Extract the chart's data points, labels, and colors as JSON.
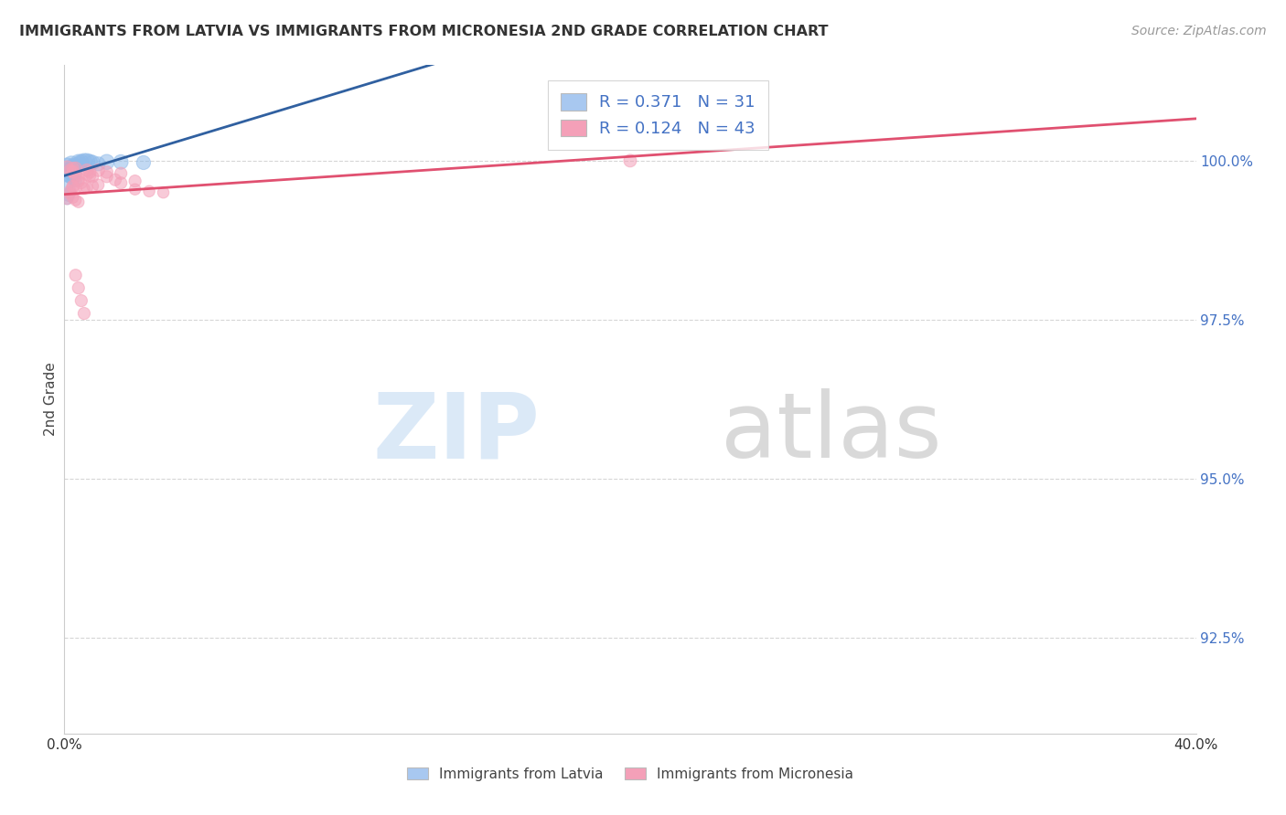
{
  "title": "IMMIGRANTS FROM LATVIA VS IMMIGRANTS FROM MICRONESIA 2ND GRADE CORRELATION CHART",
  "source": "Source: ZipAtlas.com",
  "ylabel": "2nd Grade",
  "ytick_vals": [
    92.5,
    95.0,
    97.5,
    100.0
  ],
  "ytick_labels": [
    "92.5%",
    "95.0%",
    "97.5%",
    "100.0%"
  ],
  "xlim": [
    0.0,
    40.0
  ],
  "ylim": [
    91.0,
    101.5
  ],
  "r_latvia": 0.371,
  "n_latvia": 31,
  "r_micronesia": 0.124,
  "n_micronesia": 43,
  "legend_color_latvia": "#A8C8F0",
  "legend_color_micronesia": "#F4A0B8",
  "trend_color_latvia": "#3060A0",
  "trend_color_micronesia": "#E05070",
  "dot_color_latvia": "#90BBEA",
  "dot_color_micronesia": "#F4A0B8",
  "background_color": "#FFFFFF",
  "latvia_x": [
    0.1,
    0.15,
    0.2,
    0.2,
    0.25,
    0.25,
    0.3,
    0.3,
    0.35,
    0.4,
    0.4,
    0.45,
    0.5,
    0.5,
    0.6,
    0.7,
    0.8,
    0.9,
    1.0,
    1.2,
    1.5,
    0.1,
    0.15,
    0.1,
    0.2,
    0.1,
    0.15,
    0.3,
    0.4,
    2.0,
    2.8
  ],
  "latvia_y": [
    99.9,
    99.85,
    99.8,
    99.75,
    99.9,
    99.95,
    99.92,
    99.88,
    99.85,
    99.82,
    99.88,
    99.92,
    99.95,
    99.98,
    99.98,
    99.99,
    99.99,
    99.98,
    99.97,
    99.95,
    99.98,
    99.78,
    99.75,
    99.6,
    99.5,
    99.4,
    99.45,
    99.7,
    99.68,
    99.98,
    99.97
  ],
  "micronesia_x": [
    0.1,
    0.2,
    0.3,
    0.3,
    0.4,
    0.4,
    0.5,
    0.5,
    0.6,
    0.7,
    0.8,
    0.9,
    0.8,
    0.9,
    1.0,
    1.2,
    1.5,
    1.8,
    2.0,
    2.5,
    3.0,
    3.5,
    0.2,
    0.3,
    0.1,
    0.4,
    0.5,
    0.3,
    0.4,
    0.2,
    0.3,
    0.4,
    0.5,
    0.6,
    0.7,
    2.5,
    1.2,
    1.0,
    0.8,
    1.5,
    2.0,
    0.3,
    20.0
  ],
  "micronesia_y": [
    99.9,
    99.85,
    99.83,
    99.82,
    99.88,
    99.75,
    99.72,
    99.68,
    99.65,
    99.56,
    99.85,
    99.82,
    99.78,
    99.76,
    99.75,
    99.85,
    99.82,
    99.7,
    99.65,
    99.55,
    99.52,
    99.5,
    99.48,
    99.42,
    99.4,
    99.38,
    99.35,
    99.58,
    99.55,
    99.52,
    99.6,
    98.2,
    98.0,
    97.8,
    97.6,
    99.68,
    99.62,
    99.6,
    99.58,
    99.75,
    99.8,
    99.88,
    100.0
  ],
  "latvia_sizes": [
    200,
    120,
    100,
    100,
    120,
    150,
    130,
    110,
    100,
    100,
    110,
    120,
    130,
    140,
    140,
    150,
    150,
    140,
    130,
    120,
    140,
    90,
    90,
    80,
    80,
    80,
    80,
    90,
    90,
    130,
    120
  ],
  "micronesia_sizes": [
    100,
    90,
    90,
    90,
    100,
    90,
    90,
    90,
    85,
    80,
    100,
    95,
    90,
    90,
    90,
    100,
    95,
    90,
    90,
    80,
    80,
    80,
    80,
    80,
    80,
    80,
    80,
    90,
    90,
    90,
    90,
    90,
    90,
    90,
    90,
    90,
    85,
    85,
    85,
    90,
    90,
    90,
    100
  ]
}
